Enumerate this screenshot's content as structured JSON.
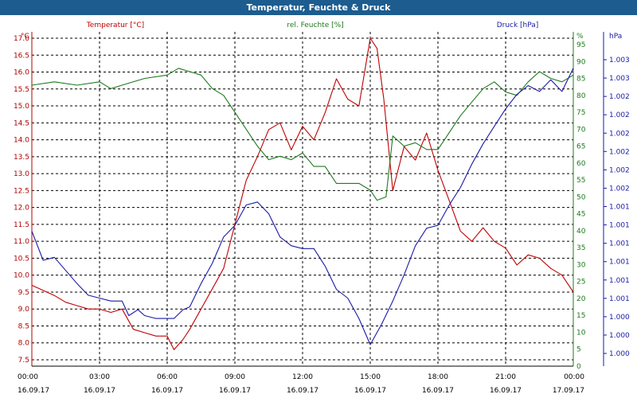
{
  "window": {
    "title": "Temperatur, Feuchte & Druck"
  },
  "chart_data": {
    "type": "line",
    "title": "Temperatur, Feuchte & Druck",
    "grid": true,
    "x_ticks": [
      {
        "time": "00:00",
        "date": "16.09.17"
      },
      {
        "time": "03:00",
        "date": "16.09.17"
      },
      {
        "time": "06:00",
        "date": "16.09.17"
      },
      {
        "time": "09:00",
        "date": "16.09.17"
      },
      {
        "time": "12:00",
        "date": "16.09.17"
      },
      {
        "time": "15:00",
        "date": "16.09.17"
      },
      {
        "time": "18:00",
        "date": "16.09.17"
      },
      {
        "time": "21:00",
        "date": "16.09.17"
      },
      {
        "time": "00:00",
        "date": "17.09.17"
      }
    ],
    "axes": {
      "left": {
        "unit": "°C",
        "color": "#b00000",
        "ylim": [
          7.5,
          17.0
        ],
        "ticks": [
          "7.5",
          "8.0",
          "8.5",
          "9.0",
          "9.5",
          "10.0",
          "10.5",
          "11.0",
          "11.5",
          "12.0",
          "12.5",
          "13.0",
          "13.5",
          "14.0",
          "14.5",
          "15.0",
          "15.5",
          "16.0",
          "16.5",
          "17.0"
        ]
      },
      "right1": {
        "unit": "%",
        "color": "#1d7a1d",
        "ylim": [
          0,
          95
        ],
        "ticks": [
          "0",
          "5",
          "10",
          "15",
          "20",
          "25",
          "30",
          "35",
          "40",
          "45",
          "50",
          "55",
          "60",
          "65",
          "70",
          "75",
          "80",
          "85",
          "90",
          "95"
        ]
      },
      "right2": {
        "unit": "hPa",
        "color": "#1a1aa6",
        "ticks": [
          "1.000",
          "1.000",
          "1.000",
          "1.001",
          "1.001",
          "1.001",
          "1.001",
          "1.001",
          "1.001",
          "1.002",
          "1.002",
          "1.002",
          "1.002",
          "1.002",
          "1.002",
          "1.003",
          "1.003"
        ]
      }
    },
    "series": [
      {
        "name": "Temperatur [°C]",
        "axis": "left",
        "color": "#c00000",
        "x_hours": [
          0,
          1,
          1.5,
          2,
          2.5,
          3,
          3.5,
          4,
          4.5,
          5,
          5.5,
          6,
          6.3,
          6.7,
          7,
          7.5,
          8,
          8.5,
          9,
          9.5,
          10,
          10.5,
          11,
          11.5,
          12,
          12.5,
          13,
          13.5,
          14,
          14.5,
          15,
          15.3,
          15.6,
          16,
          16.5,
          17,
          17.5,
          18,
          18.5,
          19,
          19.5,
          20,
          20.5,
          21,
          21.5,
          22,
          22.5,
          23,
          23.5,
          24
        ],
        "values": [
          9.7,
          9.4,
          9.2,
          9.1,
          9.0,
          9.0,
          8.9,
          9.0,
          8.4,
          8.3,
          8.2,
          8.2,
          7.8,
          8.1,
          8.4,
          9.0,
          9.6,
          10.2,
          11.5,
          12.8,
          13.5,
          14.3,
          14.5,
          13.7,
          14.4,
          14.0,
          14.8,
          15.8,
          15.2,
          15.0,
          17.0,
          16.7,
          15.2,
          12.5,
          13.8,
          13.4,
          14.2,
          13.1,
          12.2,
          11.3,
          11.0,
          11.4,
          11.0,
          10.8,
          10.3,
          10.6,
          10.5,
          10.2,
          10.0,
          9.5
        ]
      },
      {
        "name": "rel. Feuchte [%]",
        "axis": "right1",
        "color": "#1d7a1d",
        "x_hours": [
          0,
          1,
          2,
          3,
          3.5,
          4,
          5,
          6,
          6.5,
          7,
          7.5,
          8,
          8.5,
          9,
          9.5,
          10,
          10.5,
          11,
          11.5,
          12,
          12.5,
          13,
          13.5,
          14,
          14.5,
          15,
          15.3,
          15.7,
          16,
          16.5,
          17,
          17.5,
          18,
          18.5,
          19,
          19.5,
          20,
          20.5,
          21,
          21.5,
          22,
          22.5,
          23,
          23.5,
          24
        ],
        "values": [
          83,
          84,
          83,
          84,
          82,
          83,
          85,
          86,
          88,
          87,
          86,
          82,
          80,
          75,
          70,
          65,
          61,
          62,
          61,
          63,
          59,
          59,
          54,
          54,
          54,
          52,
          49,
          50,
          68,
          65,
          66,
          64,
          64,
          69,
          74,
          78,
          82,
          84,
          81,
          80,
          84,
          87,
          85,
          84,
          86
        ]
      },
      {
        "name": "Druck [hPa]",
        "axis": "right2",
        "color": "#1a1aa6",
        "x_hours": [
          0,
          0.5,
          1,
          2,
          2.5,
          3,
          3.5,
          4,
          4.3,
          4.7,
          5,
          5.5,
          6,
          6.3,
          6.7,
          7,
          7.5,
          8,
          8.5,
          9,
          9.5,
          10,
          10.5,
          11,
          11.5,
          12,
          12.5,
          13,
          13.5,
          14,
          14.5,
          15,
          15.5,
          16,
          16.5,
          17,
          17.5,
          18,
          18.5,
          19,
          19.5,
          20,
          20.5,
          21,
          21.5,
          22,
          22.5,
          23,
          23.5,
          24
        ],
        "values": [
          1000.82,
          1000.72,
          1000.73,
          1000.64,
          1000.6,
          1000.59,
          1000.58,
          1000.58,
          1000.53,
          1000.55,
          1000.53,
          1000.52,
          1000.52,
          1000.52,
          1000.55,
          1000.56,
          1000.64,
          1000.71,
          1000.8,
          1000.84,
          1000.91,
          1000.92,
          1000.88,
          1000.8,
          1000.77,
          1000.76,
          1000.76,
          1000.7,
          1000.62,
          1000.59,
          1000.52,
          1000.43,
          1000.5,
          1000.58,
          1000.67,
          1000.77,
          1000.83,
          1000.84,
          1000.91,
          1000.97,
          1001.05,
          1001.12,
          1001.18,
          1001.24,
          1001.29,
          1001.32,
          1001.3,
          1001.34,
          1001.3,
          1001.38
        ]
      }
    ]
  }
}
